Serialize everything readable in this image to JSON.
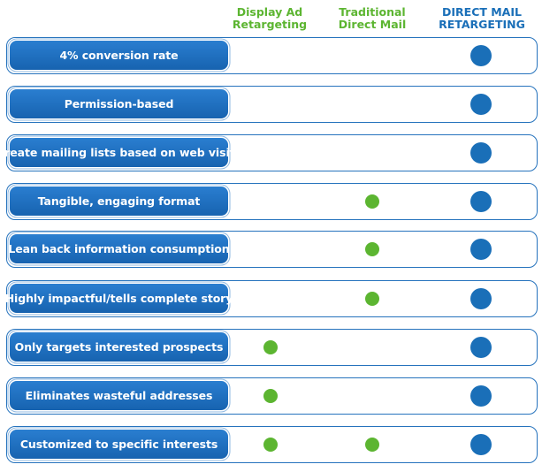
{
  "columns": [
    {
      "line1": "Display Ad",
      "line2": "Retargeting"
    },
    {
      "line1": "Traditional",
      "line2": "Direct Mail"
    },
    {
      "line1": "DIRECT MAIL",
      "line2": "RETARGETING"
    }
  ],
  "colors": {
    "green": "#5cb531",
    "blue": "#1a6fb8"
  },
  "rows": [
    {
      "feature": "4% conversion rate",
      "display_ad": false,
      "traditional": false,
      "direct_mail_retargeting": true
    },
    {
      "feature": "Permission-based",
      "display_ad": false,
      "traditional": false,
      "direct_mail_retargeting": true
    },
    {
      "feature": "Create mailing lists based on web visits",
      "display_ad": false,
      "traditional": false,
      "direct_mail_retargeting": true
    },
    {
      "feature": "Tangible, engaging format",
      "display_ad": false,
      "traditional": true,
      "direct_mail_retargeting": true
    },
    {
      "feature": "Lean back information consumption",
      "display_ad": false,
      "traditional": true,
      "direct_mail_retargeting": true
    },
    {
      "feature": "Highly impactful/tells complete story",
      "display_ad": false,
      "traditional": true,
      "direct_mail_retargeting": true
    },
    {
      "feature": "Only targets interested prospects",
      "display_ad": true,
      "traditional": false,
      "direct_mail_retargeting": true
    },
    {
      "feature": "Eliminates wasteful addresses",
      "display_ad": true,
      "traditional": false,
      "direct_mail_retargeting": true
    },
    {
      "feature": "Customized to specific interests",
      "display_ad": true,
      "traditional": true,
      "direct_mail_retargeting": true
    }
  ]
}
